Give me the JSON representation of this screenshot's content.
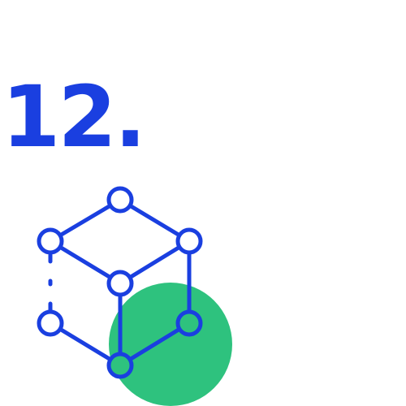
{
  "heading": {
    "number": "12."
  },
  "illustration": {
    "icon": "network-cube-icon",
    "colors": {
      "line": "#1a3fe0",
      "node_fill": "#ffffff",
      "accent_circle": "#2ec27e"
    }
  }
}
